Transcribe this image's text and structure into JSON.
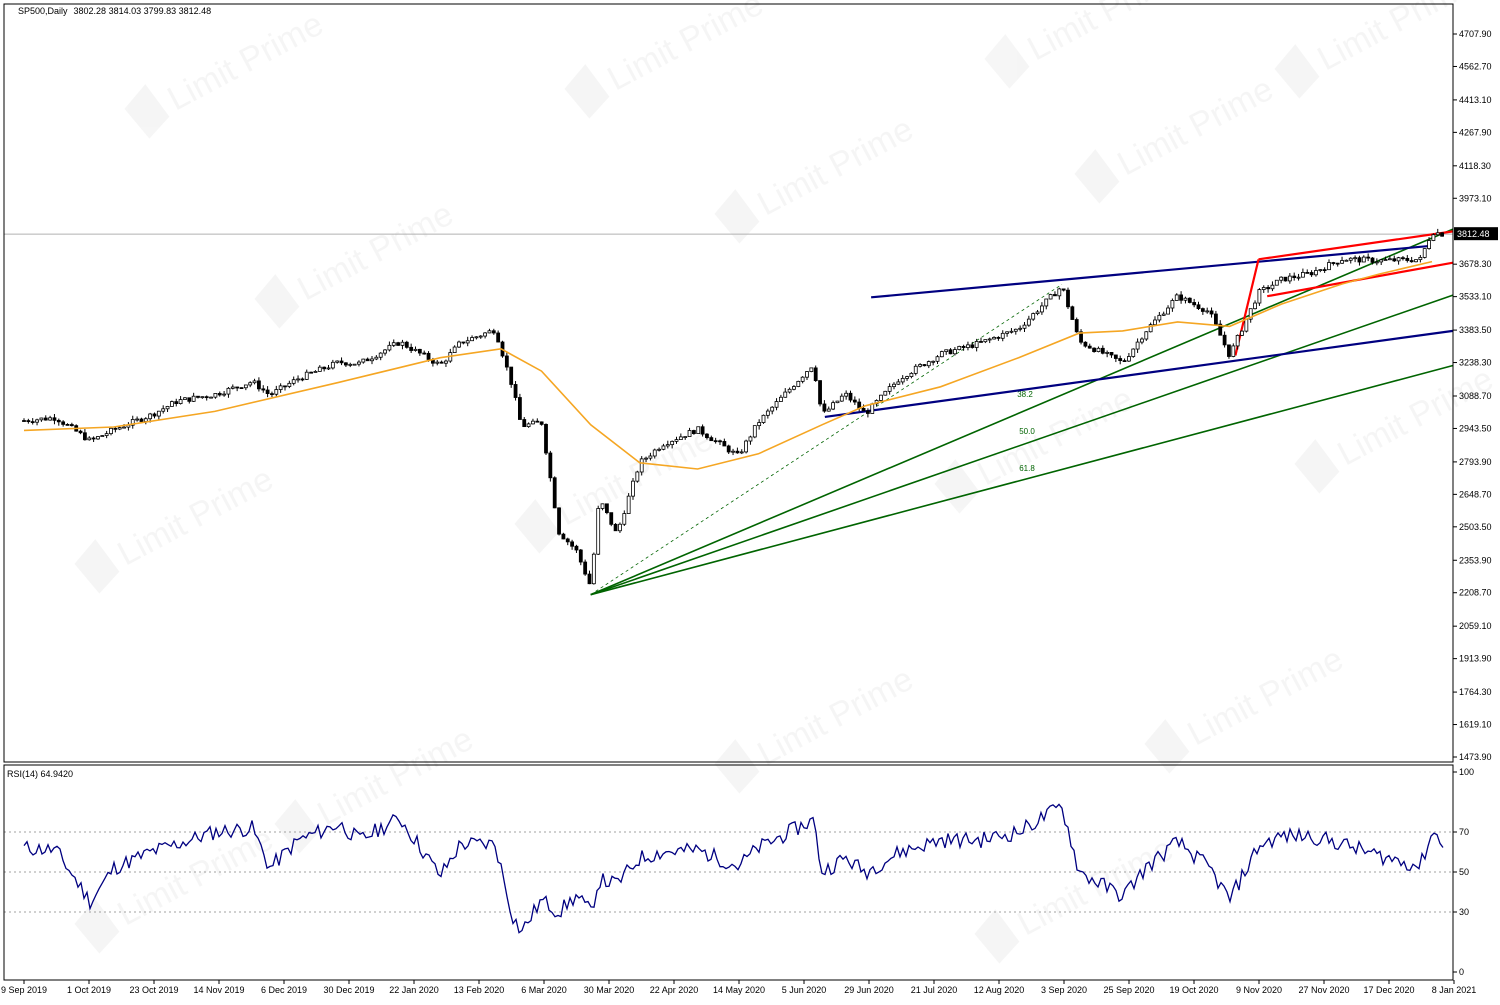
{
  "header": {
    "symbol_timeframe": "SP500,Daily",
    "ohlc": "3802.28 3814.03 3799.83 3812.48"
  },
  "rsi_label": "RSI(14) 64.9420",
  "watermark_text": "Limit Prime",
  "colors": {
    "background": "#ffffff",
    "frame": "#000000",
    "candle_up_fill": "#ffffff",
    "candle_down_fill": "#000000",
    "ma_line": "#f5a623",
    "navy_channel": "#000080",
    "red_channel": "#ff0000",
    "fib_fan": "#006400",
    "rsi_line": "#000080",
    "watermark": "#cccccc",
    "price_tag_bg": "#000000",
    "price_tag_text": "#ffffff"
  },
  "chart_data": [
    {
      "type": "candlestick",
      "title": "SP500,Daily",
      "ylim": [
        1473.9,
        4707.9
      ],
      "y_ticks": [
        "4707.90",
        "4562.70",
        "4413.10",
        "4267.90",
        "4118.30",
        "3973.10",
        "3812.48",
        "3678.30",
        "3533.10",
        "3383.50",
        "3238.30",
        "3088.70",
        "2943.50",
        "2793.90",
        "2648.70",
        "2503.50",
        "2353.90",
        "2208.70",
        "2059.10",
        "1913.90",
        "1764.30",
        "1619.10",
        "1473.90"
      ],
      "current_price": "3812.48",
      "x_ticks": [
        "9 Sep 2019",
        "1 Oct 2019",
        "23 Oct 2019",
        "14 Nov 2019",
        "6 Dec 2019",
        "30 Dec 2019",
        "22 Jan 2020",
        "13 Feb 2020",
        "6 Mar 2020",
        "30 Mar 2020",
        "22 Apr 2020",
        "14 May 2020",
        "5 Jun 2020",
        "29 Jun 2020",
        "21 Jul 2020",
        "12 Aug 2020",
        "3 Sep 2020",
        "25 Sep 2020",
        "19 Oct 2020",
        "9 Nov 2020",
        "27 Nov 2020",
        "17 Dec 2020",
        "8 Jan 2021"
      ],
      "close_series": [
        {
          "date": "2019-09-09",
          "close": 2979
        },
        {
          "date": "2019-09-20",
          "close": 2992
        },
        {
          "date": "2019-10-02",
          "close": 2887
        },
        {
          "date": "2019-10-10",
          "close": 2938
        },
        {
          "date": "2019-10-23",
          "close": 3004
        },
        {
          "date": "2019-11-01",
          "close": 3066
        },
        {
          "date": "2019-11-14",
          "close": 3096
        },
        {
          "date": "2019-11-27",
          "close": 3153
        },
        {
          "date": "2019-12-03",
          "close": 3093
        },
        {
          "date": "2019-12-13",
          "close": 3168
        },
        {
          "date": "2019-12-27",
          "close": 3240
        },
        {
          "date": "2020-01-03",
          "close": 3234
        },
        {
          "date": "2020-01-17",
          "close": 3330
        },
        {
          "date": "2020-01-31",
          "close": 3226
        },
        {
          "date": "2020-02-07",
          "close": 3328
        },
        {
          "date": "2020-02-19",
          "close": 3386
        },
        {
          "date": "2020-02-25",
          "close": 3128
        },
        {
          "date": "2020-02-28",
          "close": 2954
        },
        {
          "date": "2020-03-06",
          "close": 2972
        },
        {
          "date": "2020-03-12",
          "close": 2481
        },
        {
          "date": "2020-03-18",
          "close": 2398
        },
        {
          "date": "2020-03-23",
          "close": 2237
        },
        {
          "date": "2020-03-26",
          "close": 2630
        },
        {
          "date": "2020-04-01",
          "close": 2470
        },
        {
          "date": "2020-04-09",
          "close": 2790
        },
        {
          "date": "2020-04-17",
          "close": 2875
        },
        {
          "date": "2020-04-29",
          "close": 2940
        },
        {
          "date": "2020-05-13",
          "close": 2820
        },
        {
          "date": "2020-05-20",
          "close": 2971
        },
        {
          "date": "2020-06-08",
          "close": 3232
        },
        {
          "date": "2020-06-11",
          "close": 3002
        },
        {
          "date": "2020-06-19",
          "close": 3098
        },
        {
          "date": "2020-06-26",
          "close": 3009
        },
        {
          "date": "2020-07-08",
          "close": 3170
        },
        {
          "date": "2020-07-22",
          "close": 3276
        },
        {
          "date": "2020-08-05",
          "close": 3327
        },
        {
          "date": "2020-08-18",
          "close": 3390
        },
        {
          "date": "2020-09-02",
          "close": 3580
        },
        {
          "date": "2020-09-08",
          "close": 3332
        },
        {
          "date": "2020-09-23",
          "close": 3237
        },
        {
          "date": "2020-10-01",
          "close": 3380
        },
        {
          "date": "2020-10-12",
          "close": 3535
        },
        {
          "date": "2020-10-23",
          "close": 3465
        },
        {
          "date": "2020-10-30",
          "close": 3270
        },
        {
          "date": "2020-11-09",
          "close": 3550
        },
        {
          "date": "2020-11-17",
          "close": 3610
        },
        {
          "date": "2020-11-27",
          "close": 3638
        },
        {
          "date": "2020-12-08",
          "close": 3702
        },
        {
          "date": "2020-12-21",
          "close": 3694
        },
        {
          "date": "2021-01-04",
          "close": 3700
        },
        {
          "date": "2021-01-08",
          "close": 3824
        },
        {
          "date": "2021-01-12",
          "close": 3812
        }
      ],
      "moving_average": [
        {
          "date": "2019-09-09",
          "value": 2935
        },
        {
          "date": "2019-10-10",
          "value": 2950
        },
        {
          "date": "2019-11-14",
          "value": 3020
        },
        {
          "date": "2019-12-27",
          "value": 3150
        },
        {
          "date": "2020-01-31",
          "value": 3260
        },
        {
          "date": "2020-02-21",
          "value": 3300
        },
        {
          "date": "2020-03-06",
          "value": 3200
        },
        {
          "date": "2020-03-23",
          "value": 2960
        },
        {
          "date": "2020-04-09",
          "value": 2790
        },
        {
          "date": "2020-04-29",
          "value": 2762
        },
        {
          "date": "2020-05-20",
          "value": 2830
        },
        {
          "date": "2020-06-11",
          "value": 2960
        },
        {
          "date": "2020-06-26",
          "value": 3045
        },
        {
          "date": "2020-07-22",
          "value": 3130
        },
        {
          "date": "2020-08-18",
          "value": 3260
        },
        {
          "date": "2020-09-08",
          "value": 3370
        },
        {
          "date": "2020-09-23",
          "value": 3380
        },
        {
          "date": "2020-10-12",
          "value": 3420
        },
        {
          "date": "2020-10-30",
          "value": 3400
        },
        {
          "date": "2020-11-17",
          "value": 3500
        },
        {
          "date": "2020-12-08",
          "value": 3590
        },
        {
          "date": "2020-12-21",
          "value": 3635
        },
        {
          "date": "2021-01-08",
          "value": 3690
        }
      ],
      "fib_fan_labels": [
        "38.2",
        "50.0",
        "61.8"
      ]
    },
    {
      "type": "line",
      "title": "RSI(14) 64.9420",
      "ylim": [
        0,
        100
      ],
      "y_ticks": [
        "100",
        "70",
        "50",
        "30",
        "0"
      ],
      "levels": [
        70,
        50,
        30
      ],
      "series": [
        {
          "date": "2019-09-09",
          "value": 62
        },
        {
          "date": "2019-09-20",
          "value": 61
        },
        {
          "date": "2019-10-02",
          "value": 35
        },
        {
          "date": "2019-10-10",
          "value": 52
        },
        {
          "date": "2019-10-23",
          "value": 60
        },
        {
          "date": "2019-11-01",
          "value": 64
        },
        {
          "date": "2019-11-14",
          "value": 70
        },
        {
          "date": "2019-11-27",
          "value": 72
        },
        {
          "date": "2019-12-03",
          "value": 52
        },
        {
          "date": "2019-12-13",
          "value": 66
        },
        {
          "date": "2019-12-27",
          "value": 74
        },
        {
          "date": "2020-01-03",
          "value": 66
        },
        {
          "date": "2020-01-17",
          "value": 77
        },
        {
          "date": "2020-01-31",
          "value": 48
        },
        {
          "date": "2020-02-07",
          "value": 64
        },
        {
          "date": "2020-02-19",
          "value": 64
        },
        {
          "date": "2020-02-25",
          "value": 28
        },
        {
          "date": "2020-02-28",
          "value": 20
        },
        {
          "date": "2020-03-06",
          "value": 36
        },
        {
          "date": "2020-03-12",
          "value": 30
        },
        {
          "date": "2020-03-18",
          "value": 38
        },
        {
          "date": "2020-03-23",
          "value": 30
        },
        {
          "date": "2020-03-26",
          "value": 46
        },
        {
          "date": "2020-04-01",
          "value": 44
        },
        {
          "date": "2020-04-09",
          "value": 57
        },
        {
          "date": "2020-04-17",
          "value": 60
        },
        {
          "date": "2020-04-29",
          "value": 61
        },
        {
          "date": "2020-05-13",
          "value": 53
        },
        {
          "date": "2020-05-20",
          "value": 62
        },
        {
          "date": "2020-06-08",
          "value": 76
        },
        {
          "date": "2020-06-11",
          "value": 50
        },
        {
          "date": "2020-06-19",
          "value": 57
        },
        {
          "date": "2020-06-26",
          "value": 50
        },
        {
          "date": "2020-07-08",
          "value": 60
        },
        {
          "date": "2020-07-22",
          "value": 66
        },
        {
          "date": "2020-08-05",
          "value": 66
        },
        {
          "date": "2020-08-18",
          "value": 70
        },
        {
          "date": "2020-09-02",
          "value": 83
        },
        {
          "date": "2020-09-08",
          "value": 50
        },
        {
          "date": "2020-09-23",
          "value": 38
        },
        {
          "date": "2020-10-01",
          "value": 52
        },
        {
          "date": "2020-10-12",
          "value": 65
        },
        {
          "date": "2020-10-23",
          "value": 52
        },
        {
          "date": "2020-10-30",
          "value": 36
        },
        {
          "date": "2020-11-09",
          "value": 63
        },
        {
          "date": "2020-11-17",
          "value": 68
        },
        {
          "date": "2020-11-27",
          "value": 68
        },
        {
          "date": "2020-12-08",
          "value": 64
        },
        {
          "date": "2020-12-21",
          "value": 58
        },
        {
          "date": "2021-01-04",
          "value": 53
        },
        {
          "date": "2021-01-08",
          "value": 70
        },
        {
          "date": "2021-01-12",
          "value": 64.94
        }
      ]
    }
  ]
}
